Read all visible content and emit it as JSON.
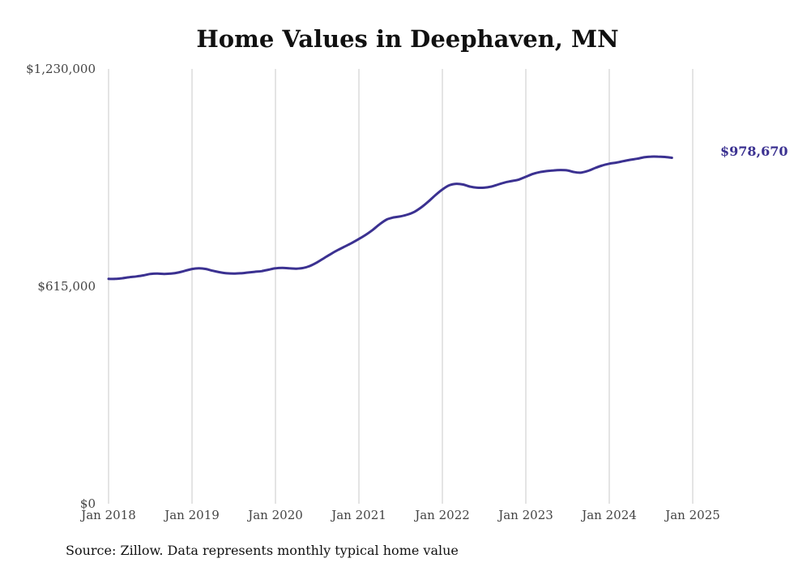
{
  "chart_data": {
    "type": "line",
    "title": "Home Values in Deephaven, MN",
    "source": "Source: Zillow. Data represents monthly typical home value",
    "ylim": [
      0,
      1230000
    ],
    "y_tick_values": [
      0,
      615000,
      1230000
    ],
    "y_tick_labels": [
      "$0",
      "$615,000",
      "$1,230,000"
    ],
    "x_tick_values": [
      2018,
      2019,
      2020,
      2021,
      2022,
      2023,
      2024,
      2025
    ],
    "x_tick_labels": [
      "Jan 2018",
      "Jan 2019",
      "Jan 2020",
      "Jan 2021",
      "Jan 2022",
      "Jan 2023",
      "Jan 2024",
      "Jan 2025"
    ],
    "grid": "vertical at x ticks",
    "line_color": "#3b3191",
    "end_label": "$978,670",
    "series": [
      {
        "points": [
          [
            "2018-01",
            636000
          ],
          [
            "2018-02",
            636000
          ],
          [
            "2018-03",
            638000
          ],
          [
            "2018-04",
            641000
          ],
          [
            "2018-05",
            643000
          ],
          [
            "2018-06",
            646000
          ],
          [
            "2018-07",
            650000
          ],
          [
            "2018-08",
            651000
          ],
          [
            "2018-09",
            650000
          ],
          [
            "2018-10",
            651000
          ],
          [
            "2018-11",
            654000
          ],
          [
            "2018-12",
            659000
          ],
          [
            "2019-01",
            664000
          ],
          [
            "2019-02",
            666000
          ],
          [
            "2019-03",
            664000
          ],
          [
            "2019-04",
            659000
          ],
          [
            "2019-05",
            655000
          ],
          [
            "2019-06",
            652000
          ],
          [
            "2019-07",
            651000
          ],
          [
            "2019-08",
            652000
          ],
          [
            "2019-09",
            654000
          ],
          [
            "2019-10",
            656000
          ],
          [
            "2019-11",
            658000
          ],
          [
            "2019-12",
            662000
          ],
          [
            "2020-01",
            666000
          ],
          [
            "2020-02",
            667000
          ],
          [
            "2020-03",
            666000
          ],
          [
            "2020-04",
            665000
          ],
          [
            "2020-05",
            667000
          ],
          [
            "2020-06",
            673000
          ],
          [
            "2020-07",
            683000
          ],
          [
            "2020-08",
            695000
          ],
          [
            "2020-09",
            707000
          ],
          [
            "2020-10",
            718000
          ],
          [
            "2020-11",
            728000
          ],
          [
            "2020-12",
            738000
          ],
          [
            "2021-01",
            749000
          ],
          [
            "2021-02",
            761000
          ],
          [
            "2021-03",
            775000
          ],
          [
            "2021-04",
            791000
          ],
          [
            "2021-05",
            804000
          ],
          [
            "2021-06",
            810000
          ],
          [
            "2021-07",
            813000
          ],
          [
            "2021-08",
            818000
          ],
          [
            "2021-09",
            826000
          ],
          [
            "2021-10",
            839000
          ],
          [
            "2021-11",
            855000
          ],
          [
            "2021-12",
            873000
          ],
          [
            "2022-01",
            889000
          ],
          [
            "2022-02",
            901000
          ],
          [
            "2022-03",
            905000
          ],
          [
            "2022-04",
            903000
          ],
          [
            "2022-05",
            897000
          ],
          [
            "2022-06",
            894000
          ],
          [
            "2022-07",
            894000
          ],
          [
            "2022-08",
            897000
          ],
          [
            "2022-09",
            903000
          ],
          [
            "2022-10",
            909000
          ],
          [
            "2022-11",
            913000
          ],
          [
            "2022-12",
            917000
          ],
          [
            "2023-01",
            925000
          ],
          [
            "2023-02",
            933000
          ],
          [
            "2023-03",
            938000
          ],
          [
            "2023-04",
            941000
          ],
          [
            "2023-05",
            943000
          ],
          [
            "2023-06",
            944000
          ],
          [
            "2023-07",
            943000
          ],
          [
            "2023-08",
            938000
          ],
          [
            "2023-09",
            937000
          ],
          [
            "2023-10",
            942000
          ],
          [
            "2023-11",
            950000
          ],
          [
            "2023-12",
            957000
          ],
          [
            "2024-01",
            962000
          ],
          [
            "2024-02",
            965000
          ],
          [
            "2024-03",
            969000
          ],
          [
            "2024-04",
            973000
          ],
          [
            "2024-05",
            976000
          ],
          [
            "2024-06",
            980000
          ],
          [
            "2024-07",
            982000
          ],
          [
            "2024-08",
            982000
          ],
          [
            "2024-09",
            981000
          ],
          [
            "2024-10",
            978670
          ]
        ]
      }
    ]
  }
}
